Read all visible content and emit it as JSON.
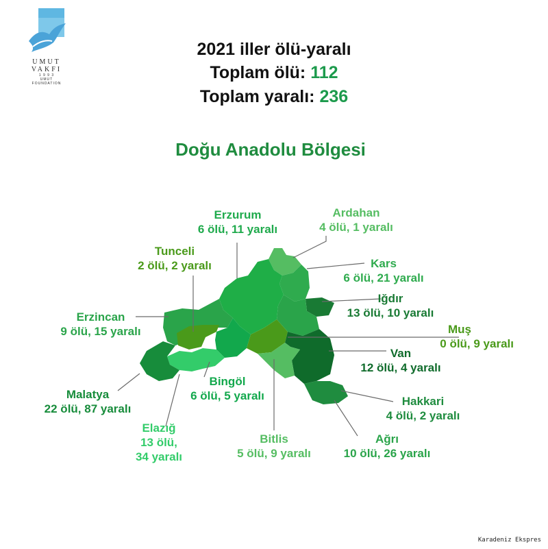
{
  "logo": {
    "line1": "UMUT",
    "line2": "VAKFI",
    "line3": "1 9 9 3",
    "line4": "UMUT",
    "line5": "FOUNDATION"
  },
  "header": {
    "title": "2021 iller ölü-yaralı",
    "deaths_label": "Toplam ölü:",
    "deaths_value": "112",
    "injured_label": "Toplam yaralı:",
    "injured_value": "236"
  },
  "region_title": "Doğu Anadolu Bölgesi",
  "provinces": {
    "erzurum": {
      "name": "Erzurum",
      "stats": "6 ölü, 11 yaralı",
      "color": "#1fae47"
    },
    "ardahan": {
      "name": "Ardahan",
      "stats": "4 ölü, 1 yaralı",
      "color": "#55bd62"
    },
    "tunceli": {
      "name": "Tunceli",
      "stats": "2 ölü, 2 yaralı",
      "color": "#4a9a1a"
    },
    "kars": {
      "name": "Kars",
      "stats": "6 ölü, 21 yaralı",
      "color": "#2fab4e"
    },
    "igdir": {
      "name": "Iğdır",
      "stats": "13 ölü, 10 yaralı",
      "color": "#197a34"
    },
    "erzincan": {
      "name": "Erzincan",
      "stats": "9 ölü, 15 yaralı",
      "color": "#2aa44a"
    },
    "mus": {
      "name": "Muş",
      "stats": "0 ölü, 9 yaralı",
      "color": "#4a9a1a"
    },
    "van": {
      "name": "Van",
      "stats": "12 ölü, 4 yaralı",
      "color": "#0f6b2b"
    },
    "bingol": {
      "name": "Bingöl",
      "stats": "6 ölü, 5 yaralı",
      "color": "#12a84c"
    },
    "malatya": {
      "name": "Malatya",
      "stats": "22 ölü, 87 yaralı",
      "color": "#178c3b"
    },
    "hakkari": {
      "name": "Hakkari",
      "stats": "4 ölü, 2 yaralı",
      "color": "#1f8c3f"
    },
    "elazig": {
      "name": "Elazığ",
      "stats_line1": "13 ölü,",
      "stats_line2": "34 yaralı",
      "color": "#33cc6a"
    },
    "bitlis": {
      "name": "Bitlis",
      "stats": "5 ölü, 9 yaralı",
      "color": "#55bd62"
    },
    "agri": {
      "name": "Ağrı",
      "stats": "10 ölü, 26 yaralı",
      "color": "#2aa44a"
    }
  },
  "credit": "Karadeniz Ekspres"
}
